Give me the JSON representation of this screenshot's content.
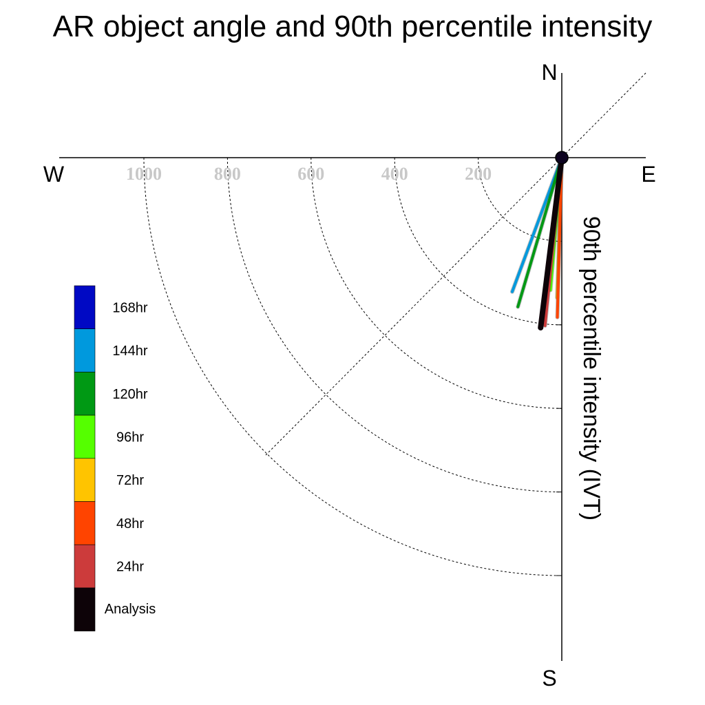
{
  "chart_data": {
    "type": "polar-vector",
    "title": "AR object angle and 90th percentile intensity",
    "radial_label": "90th percentile intensity (IVT)",
    "radial_range": [
      0,
      1000
    ],
    "rings": [
      200,
      400,
      600,
      800,
      1000
    ],
    "ring_labels": [
      "200",
      "400",
      "600",
      "800",
      "1000"
    ],
    "directions": {
      "n": "N",
      "s": "S",
      "e": "E",
      "w": "W"
    },
    "grid": true,
    "legend_position": "left",
    "series": [
      {
        "name": "168hr",
        "color": "#0009C4",
        "angle_deg": null,
        "intensity": null
      },
      {
        "name": "144hr",
        "color": "#0099DD",
        "angle_deg": 200.3,
        "intensity": 342
      },
      {
        "name": "120hr",
        "color": "#009914",
        "angle_deg": 196.4,
        "intensity": 372
      },
      {
        "name": "96hr",
        "color": "#55FF00",
        "angle_deg": 184.9,
        "intensity": 318
      },
      {
        "name": "72hr",
        "color": "#FFC400",
        "angle_deg": 181.9,
        "intensity": 335
      },
      {
        "name": "48hr",
        "color": "#FF4400",
        "angle_deg": 181.6,
        "intensity": 382
      },
      {
        "name": "24hr",
        "color": "#CC3B3B",
        "angle_deg": 185.7,
        "intensity": 404
      },
      {
        "name": "Analysis",
        "color": "#0D0308",
        "angle_deg": 187.1,
        "intensity": 410
      }
    ]
  }
}
